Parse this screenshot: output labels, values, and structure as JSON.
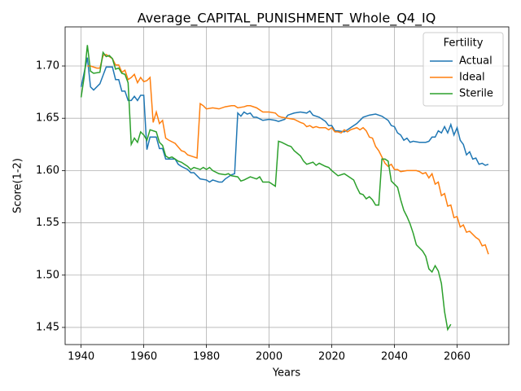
{
  "chart_data": {
    "type": "line",
    "title": "Average_CAPITAL_PUNISHMENT_Whole_Q4_IQ",
    "x_label": "Years",
    "y_label": "Score(1-2)",
    "xlim": [
      1934.9,
      2076.5
    ],
    "ylim": [
      1.4336,
      1.7374
    ],
    "xticks": [
      1940,
      1960,
      1980,
      2000,
      2020,
      2040,
      2060
    ],
    "yticks": [
      1.45,
      {
        "value": 1.5,
        "label": "1.50"
      },
      1.55,
      {
        "value": 1.6,
        "label": "1.60"
      },
      1.65,
      {
        "value": 1.7,
        "label": "1.70"
      }
    ],
    "grid": true,
    "legend_title": "Fertility",
    "legend_position": "upper right",
    "series": [
      {
        "name": "Actual",
        "color": "#1f77b4",
        "x": [
          1940,
          1942,
          1943,
          1944,
          1946,
          1948,
          1950,
          1951,
          1952,
          1953,
          1954,
          1955,
          1956,
          1957,
          1958,
          1959,
          1960,
          1961,
          1962,
          1964,
          1965,
          1966,
          1967,
          1968,
          1970,
          1971,
          1972,
          1974,
          1975,
          1976,
          1978,
          1980,
          1981,
          1982,
          1984,
          1985,
          1986,
          1988,
          1989,
          1990,
          1991,
          1992,
          1993,
          1994,
          1995,
          1996,
          1998,
          2000,
          2002,
          2003,
          2004,
          2005,
          2006,
          2008,
          2010,
          2012,
          2013,
          2014,
          2016,
          2017,
          2018,
          2019,
          2020,
          2021,
          2022,
          2024,
          2025,
          2026,
          2028,
          2030,
          2032,
          2034,
          2036,
          2038,
          2039,
          2040,
          2041,
          2042,
          2043,
          2044,
          2045,
          2046,
          2048,
          2050,
          2051,
          2052,
          2053,
          2054,
          2055,
          2056,
          2057,
          2058,
          2059,
          2060,
          2061,
          2062,
          2063,
          2064,
          2065,
          2066,
          2067,
          2068,
          2069,
          2070
        ],
        "values": [
          1.68,
          1.708,
          1.68,
          1.677,
          1.683,
          1.699,
          1.699,
          1.687,
          1.687,
          1.676,
          1.676,
          1.667,
          1.667,
          1.671,
          1.667,
          1.672,
          1.672,
          1.62,
          1.632,
          1.632,
          1.621,
          1.621,
          1.611,
          1.611,
          1.611,
          1.606,
          1.604,
          1.601,
          1.598,
          1.598,
          1.592,
          1.591,
          1.589,
          1.591,
          1.589,
          1.589,
          1.592,
          1.596,
          1.597,
          1.655,
          1.652,
          1.656,
          1.654,
          1.655,
          1.651,
          1.651,
          1.648,
          1.649,
          1.648,
          1.647,
          1.648,
          1.649,
          1.653,
          1.655,
          1.656,
          1.655,
          1.657,
          1.653,
          1.651,
          1.649,
          1.647,
          1.643,
          1.643,
          1.638,
          1.638,
          1.637,
          1.639,
          1.641,
          1.645,
          1.651,
          1.653,
          1.654,
          1.652,
          1.648,
          1.643,
          1.642,
          1.636,
          1.634,
          1.629,
          1.631,
          1.627,
          1.628,
          1.627,
          1.627,
          1.628,
          1.632,
          1.632,
          1.638,
          1.636,
          1.642,
          1.636,
          1.644,
          1.634,
          1.641,
          1.629,
          1.625,
          1.615,
          1.618,
          1.611,
          1.612,
          1.606,
          1.607,
          1.605,
          1.606
        ]
      },
      {
        "name": "Ideal",
        "color": "#ff7f0e",
        "x": [
          1942,
          1943,
          1945,
          1946,
          1947,
          1948,
          1949,
          1950,
          1951,
          1952,
          1953,
          1954,
          1955,
          1956,
          1957,
          1958,
          1959,
          1960,
          1961,
          1962,
          1963,
          1964,
          1965,
          1966,
          1967,
          1968,
          1970,
          1972,
          1973,
          1974,
          1976,
          1977,
          1978,
          1979,
          1980,
          1982,
          1984,
          1986,
          1988,
          1989,
          1990,
          1992,
          1993,
          1994,
          1996,
          1998,
          2000,
          2002,
          2003,
          2004,
          2006,
          2008,
          2010,
          2011,
          2012,
          2013,
          2014,
          2015,
          2016,
          2018,
          2019,
          2020,
          2021,
          2022,
          2023,
          2024,
          2025,
          2026,
          2028,
          2029,
          2030,
          2031,
          2032,
          2033,
          2034,
          2035,
          2036,
          2037,
          2038,
          2039,
          2040,
          2041,
          2042,
          2044,
          2046,
          2047,
          2048,
          2049,
          2050,
          2051,
          2052,
          2053,
          2054,
          2055,
          2056,
          2057,
          2058,
          2059,
          2060,
          2061,
          2062,
          2063,
          2064,
          2066,
          2067,
          2068,
          2069,
          2070
        ],
        "values": [
          1.7,
          1.7,
          1.698,
          1.698,
          1.71,
          1.711,
          1.709,
          1.707,
          1.701,
          1.701,
          1.694,
          1.696,
          1.687,
          1.689,
          1.692,
          1.684,
          1.689,
          1.685,
          1.686,
          1.689,
          1.646,
          1.656,
          1.645,
          1.648,
          1.631,
          1.629,
          1.626,
          1.619,
          1.618,
          1.615,
          1.613,
          1.612,
          1.664,
          1.662,
          1.659,
          1.66,
          1.659,
          1.661,
          1.662,
          1.662,
          1.66,
          1.661,
          1.662,
          1.662,
          1.66,
          1.656,
          1.656,
          1.655,
          1.652,
          1.651,
          1.65,
          1.649,
          1.646,
          1.645,
          1.642,
          1.643,
          1.641,
          1.642,
          1.641,
          1.641,
          1.639,
          1.641,
          1.637,
          1.637,
          1.636,
          1.639,
          1.637,
          1.639,
          1.641,
          1.639,
          1.641,
          1.638,
          1.632,
          1.631,
          1.623,
          1.619,
          1.613,
          1.607,
          1.604,
          1.606,
          1.601,
          1.601,
          1.599,
          1.6,
          1.6,
          1.6,
          1.599,
          1.597,
          1.598,
          1.593,
          1.597,
          1.587,
          1.589,
          1.576,
          1.578,
          1.566,
          1.567,
          1.555,
          1.556,
          1.546,
          1.548,
          1.541,
          1.542,
          1.536,
          1.534,
          1.528,
          1.529,
          1.52
        ]
      },
      {
        "name": "Sterile",
        "color": "#2ca02c",
        "x": [
          1940,
          1941,
          1942,
          1943,
          1944,
          1946,
          1947,
          1948,
          1949,
          1950,
          1951,
          1952,
          1953,
          1954,
          1955,
          1956,
          1957,
          1958,
          1959,
          1960,
          1961,
          1962,
          1964,
          1965,
          1966,
          1967,
          1968,
          1969,
          1970,
          1971,
          1972,
          1974,
          1975,
          1976,
          1978,
          1979,
          1980,
          1981,
          1982,
          1984,
          1986,
          1987,
          1988,
          1990,
          1991,
          1992,
          1994,
          1996,
          1997,
          1998,
          2000,
          2002,
          2003,
          2004,
          2006,
          2007,
          2008,
          2010,
          2011,
          2012,
          2014,
          2015,
          2016,
          2018,
          2019,
          2020,
          2022,
          2024,
          2026,
          2027,
          2028,
          2029,
          2030,
          2031,
          2032,
          2033,
          2034,
          2035,
          2036,
          2037,
          2038,
          2039,
          2040,
          2041,
          2042,
          2043,
          2044,
          2045,
          2046,
          2047,
          2048,
          2049,
          2050,
          2051,
          2052,
          2053,
          2054,
          2055,
          2056,
          2057,
          2058
        ],
        "values": [
          1.67,
          1.69,
          1.72,
          1.695,
          1.693,
          1.694,
          1.713,
          1.709,
          1.71,
          1.707,
          1.697,
          1.698,
          1.693,
          1.692,
          1.684,
          1.625,
          1.631,
          1.627,
          1.637,
          1.634,
          1.629,
          1.639,
          1.637,
          1.627,
          1.624,
          1.614,
          1.612,
          1.613,
          1.611,
          1.609,
          1.608,
          1.604,
          1.601,
          1.603,
          1.601,
          1.603,
          1.601,
          1.603,
          1.6,
          1.597,
          1.596,
          1.597,
          1.595,
          1.594,
          1.59,
          1.591,
          1.594,
          1.592,
          1.594,
          1.589,
          1.589,
          1.585,
          1.628,
          1.627,
          1.624,
          1.623,
          1.619,
          1.614,
          1.609,
          1.606,
          1.608,
          1.605,
          1.607,
          1.604,
          1.603,
          1.6,
          1.595,
          1.597,
          1.593,
          1.591,
          1.584,
          1.578,
          1.577,
          1.573,
          1.575,
          1.572,
          1.567,
          1.567,
          1.611,
          1.611,
          1.609,
          1.59,
          1.587,
          1.584,
          1.572,
          1.562,
          1.556,
          1.549,
          1.54,
          1.529,
          1.526,
          1.523,
          1.518,
          1.506,
          1.503,
          1.509,
          1.504,
          1.492,
          1.465,
          1.448,
          1.453
        ]
      }
    ]
  }
}
